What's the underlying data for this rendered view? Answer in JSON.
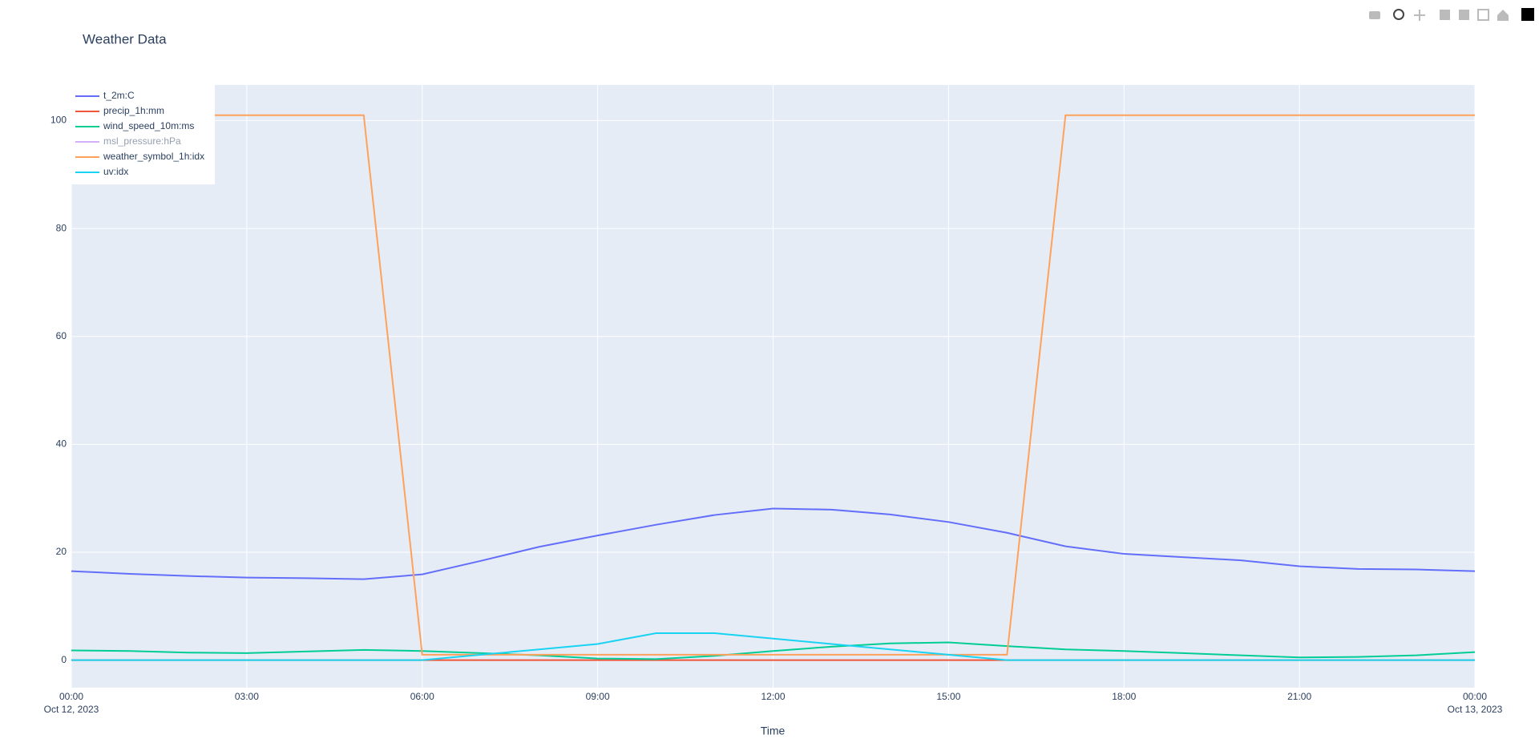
{
  "chart_data": {
    "type": "line",
    "title": "Weather Data",
    "x_label": "Time",
    "x": [
      "2023-10-12 00:00",
      "2023-10-12 01:00",
      "2023-10-12 02:00",
      "2023-10-12 03:00",
      "2023-10-12 04:00",
      "2023-10-12 05:00",
      "2023-10-12 06:00",
      "2023-10-12 07:00",
      "2023-10-12 08:00",
      "2023-10-12 09:00",
      "2023-10-12 10:00",
      "2023-10-12 11:00",
      "2023-10-12 12:00",
      "2023-10-12 13:00",
      "2023-10-12 14:00",
      "2023-10-12 15:00",
      "2023-10-12 16:00",
      "2023-10-12 17:00",
      "2023-10-12 18:00",
      "2023-10-12 19:00",
      "2023-10-12 20:00",
      "2023-10-12 21:00",
      "2023-10-12 22:00",
      "2023-10-12 23:00",
      "2023-10-13 00:00"
    ],
    "series": [
      {
        "name": "t_2m:C",
        "color": "#636efa",
        "values": [
          16.5,
          16,
          15.6,
          15.3,
          15.2,
          15,
          15.9,
          18.4,
          21,
          23.1,
          25.1,
          26.9,
          28.1,
          27.9,
          27,
          25.6,
          23.6,
          21.1,
          19.7,
          19.1,
          18.5,
          17.4,
          16.9,
          16.8,
          16.5
        ]
      },
      {
        "name": "precip_1h:mm",
        "color": "#ef553b",
        "values": [
          0,
          0,
          0,
          0,
          0,
          0,
          0,
          0,
          0,
          0,
          0,
          0,
          0,
          0,
          0,
          0,
          0,
          0,
          0,
          0,
          0,
          0,
          0,
          0,
          0
        ]
      },
      {
        "name": "wind_speed_10m:ms",
        "color": "#00cc96",
        "values": [
          1.8,
          1.7,
          1.4,
          1.3,
          1.6,
          1.9,
          1.7,
          1.3,
          0.9,
          0.3,
          0.2,
          0.8,
          1.7,
          2.5,
          3.1,
          3.3,
          2.6,
          2,
          1.7,
          1.3,
          0.9,
          0.5,
          0.6,
          0.9,
          1.5
        ]
      },
      {
        "name": "msl_pressure:hPa",
        "color": "#ab63fa",
        "visible": false
      },
      {
        "name": "weather_symbol_1h:idx",
        "color": "#ffa15a",
        "values": [
          101,
          101,
          101,
          101,
          101,
          101,
          1,
          1,
          1,
          1,
          1,
          1,
          1,
          1,
          1,
          1,
          1,
          101,
          101,
          101,
          101,
          101,
          101,
          101,
          101
        ]
      },
      {
        "name": "uv:idx",
        "color": "#19d3f3",
        "values": [
          0,
          0,
          0,
          0,
          0,
          0,
          0,
          1,
          2,
          3,
          5,
          5,
          4,
          3,
          2,
          1,
          0,
          0,
          0,
          0,
          0,
          0,
          0,
          0,
          0
        ]
      }
    ],
    "xlim": [
      "2023-10-12 00:00",
      "2023-10-13 00:00"
    ],
    "xticks": [
      {
        "value": "2023-10-12 00:00",
        "label": "00:00",
        "sublabel": "Oct 12, 2023"
      },
      {
        "value": "2023-10-12 03:00",
        "label": "03:00"
      },
      {
        "value": "2023-10-12 06:00",
        "label": "06:00"
      },
      {
        "value": "2023-10-12 09:00",
        "label": "09:00"
      },
      {
        "value": "2023-10-12 12:00",
        "label": "12:00"
      },
      {
        "value": "2023-10-12 15:00",
        "label": "15:00"
      },
      {
        "value": "2023-10-12 18:00",
        "label": "18:00"
      },
      {
        "value": "2023-10-12 21:00",
        "label": "21:00"
      },
      {
        "value": "2023-10-13 00:00",
        "label": "00:00",
        "sublabel": "Oct 13, 2023"
      }
    ],
    "ylim": [
      -5.1,
      106.6
    ],
    "yticks": [
      0,
      20,
      40,
      60,
      80,
      100
    ],
    "grid": true,
    "legend": "top-left"
  }
}
